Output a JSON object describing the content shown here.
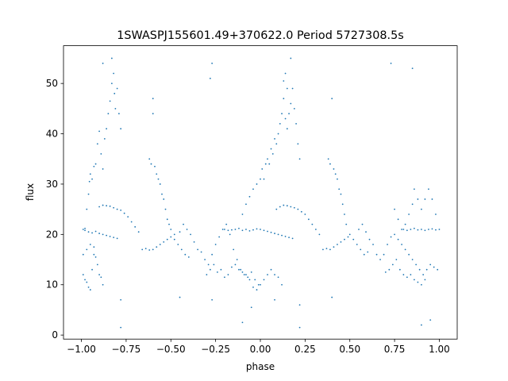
{
  "chart_data": {
    "type": "scatter",
    "title": "1SWASPJ155601.49+370622.0 Period 5727308.5s",
    "xlabel": "phase",
    "ylabel": "flux",
    "xlim": [
      -1.1,
      1.1
    ],
    "ylim": [
      -0.8,
      57.5
    ],
    "xticks": [
      -1.0,
      -0.75,
      -0.5,
      -0.25,
      0.0,
      0.25,
      0.5,
      0.75,
      1.0
    ],
    "xtick_labels": [
      "−1.00",
      "−0.75",
      "−0.50",
      "−0.25",
      "0.00",
      "0.25",
      "0.50",
      "0.75",
      "1.00"
    ],
    "yticks": [
      0,
      10,
      20,
      30,
      40,
      50
    ],
    "ytick_labels": [
      "0",
      "10",
      "20",
      "30",
      "40",
      "50"
    ],
    "grid": false,
    "marker_color": "#1f77b4",
    "series": [
      {
        "values_description_only": "",
        "points": [
          [
            -0.99,
            21.0
          ],
          [
            -0.98,
            20.8
          ],
          [
            -0.97,
            25.0
          ],
          [
            -0.96,
            28.0
          ],
          [
            -0.955,
            30.5
          ],
          [
            -0.95,
            32.0
          ],
          [
            -0.94,
            31.0
          ],
          [
            -0.93,
            33.5
          ],
          [
            -0.92,
            34.0
          ],
          [
            -0.91,
            38.0
          ],
          [
            -0.9,
            40.5
          ],
          [
            -0.89,
            36.0
          ],
          [
            -0.88,
            33.0
          ],
          [
            -0.87,
            39.0
          ],
          [
            -0.86,
            41.0
          ],
          [
            -0.85,
            44.0
          ],
          [
            -0.84,
            46.5
          ],
          [
            -0.83,
            50.0
          ],
          [
            -0.82,
            52.0
          ],
          [
            -0.815,
            48.0
          ],
          [
            -0.81,
            45.0
          ],
          [
            -0.8,
            49.0
          ],
          [
            -0.79,
            44.0
          ],
          [
            -0.78,
            41.0
          ],
          [
            -0.99,
            12.0
          ],
          [
            -0.98,
            11.0
          ],
          [
            -0.97,
            10.5
          ],
          [
            -0.96,
            9.5
          ],
          [
            -0.95,
            9.0
          ],
          [
            -0.94,
            13.0
          ],
          [
            -0.93,
            16.0
          ],
          [
            -0.92,
            15.5
          ],
          [
            -0.91,
            14.0
          ],
          [
            -0.9,
            12.0
          ],
          [
            -0.89,
            11.5
          ],
          [
            -0.88,
            10.0
          ],
          [
            -0.99,
            16.0
          ],
          [
            -0.97,
            17.0
          ],
          [
            -0.95,
            18.0
          ],
          [
            -0.93,
            17.5
          ],
          [
            -0.98,
            21.2
          ],
          [
            -0.96,
            20.5
          ],
          [
            -0.94,
            20.3
          ],
          [
            -0.92,
            20.6
          ],
          [
            -0.9,
            20.2
          ],
          [
            -0.88,
            20.0
          ],
          [
            -0.86,
            19.8
          ],
          [
            -0.84,
            19.6
          ],
          [
            -0.82,
            19.4
          ],
          [
            -0.8,
            19.2
          ],
          [
            -0.9,
            25.5
          ],
          [
            -0.88,
            25.8
          ],
          [
            -0.86,
            25.7
          ],
          [
            -0.84,
            25.6
          ],
          [
            -0.82,
            25.3
          ],
          [
            -0.8,
            25.0
          ],
          [
            -0.78,
            24.8
          ],
          [
            -0.76,
            24.2
          ],
          [
            -0.74,
            23.5
          ],
          [
            -0.72,
            22.5
          ],
          [
            -0.7,
            21.5
          ],
          [
            -0.68,
            20.5
          ],
          [
            -0.66,
            17.0
          ],
          [
            -0.64,
            17.2
          ],
          [
            -0.62,
            16.9
          ],
          [
            -0.6,
            17.0
          ],
          [
            -0.58,
            17.5
          ],
          [
            -0.56,
            18.0
          ],
          [
            -0.54,
            18.5
          ],
          [
            -0.52,
            19.0
          ],
          [
            -0.5,
            19.5
          ],
          [
            -0.48,
            20.0
          ],
          [
            -0.62,
            35.0
          ],
          [
            -0.61,
            34.0
          ],
          [
            -0.6,
            47.0
          ],
          [
            -0.59,
            33.5
          ],
          [
            -0.58,
            32.0
          ],
          [
            -0.57,
            31.0
          ],
          [
            -0.56,
            30.0
          ],
          [
            -0.55,
            28.0
          ],
          [
            -0.54,
            27.0
          ],
          [
            -0.53,
            25.0
          ],
          [
            -0.52,
            23.0
          ],
          [
            -0.51,
            22.0
          ],
          [
            -0.5,
            21.0
          ],
          [
            -0.48,
            19.0
          ],
          [
            -0.46,
            18.0
          ],
          [
            -0.44,
            17.0
          ],
          [
            -0.42,
            16.0
          ],
          [
            -0.4,
            15.5
          ],
          [
            -0.45,
            20.5
          ],
          [
            -0.43,
            22.0
          ],
          [
            -0.41,
            21.0
          ],
          [
            -0.39,
            20.0
          ],
          [
            -0.37,
            18.5
          ],
          [
            -0.35,
            17.0
          ],
          [
            -0.33,
            16.5
          ],
          [
            -0.31,
            15.0
          ],
          [
            -0.29,
            14.0
          ],
          [
            -0.27,
            16.0
          ],
          [
            -0.25,
            18.0
          ],
          [
            -0.23,
            19.5
          ],
          [
            -0.21,
            21.0
          ],
          [
            -0.19,
            22.0
          ],
          [
            -0.17,
            20.0
          ],
          [
            -0.15,
            17.0
          ],
          [
            -0.13,
            15.0
          ],
          [
            -0.11,
            13.0
          ],
          [
            -0.09,
            12.0
          ],
          [
            -0.07,
            11.5
          ],
          [
            -0.05,
            12.5
          ],
          [
            -0.03,
            11.0
          ],
          [
            -0.01,
            10.0
          ],
          [
            -0.3,
            12.0
          ],
          [
            -0.28,
            13.0
          ],
          [
            -0.26,
            14.0
          ],
          [
            -0.24,
            12.5
          ],
          [
            -0.22,
            13.0
          ],
          [
            -0.2,
            11.5
          ],
          [
            -0.18,
            12.0
          ],
          [
            -0.16,
            13.5
          ],
          [
            -0.14,
            14.0
          ],
          [
            -0.12,
            13.0
          ],
          [
            -0.1,
            12.5
          ],
          [
            -0.08,
            12.0
          ],
          [
            -0.06,
            11.0
          ],
          [
            -0.04,
            9.5
          ],
          [
            -0.02,
            9.0
          ],
          [
            0.0,
            10.0
          ],
          [
            0.02,
            11.0
          ],
          [
            0.04,
            12.0
          ],
          [
            0.06,
            13.0
          ],
          [
            0.08,
            12.0
          ],
          [
            0.1,
            11.5
          ],
          [
            0.12,
            10.0
          ],
          [
            -0.2,
            21.0
          ],
          [
            -0.18,
            20.8
          ],
          [
            -0.16,
            20.9
          ],
          [
            -0.14,
            21.0
          ],
          [
            -0.12,
            21.2
          ],
          [
            -0.1,
            20.8
          ],
          [
            -0.08,
            21.0
          ],
          [
            -0.06,
            20.7
          ],
          [
            -0.04,
            20.9
          ],
          [
            -0.02,
            21.1
          ],
          [
            0.0,
            21.0
          ],
          [
            0.02,
            20.8
          ],
          [
            0.04,
            20.6
          ],
          [
            0.06,
            20.4
          ],
          [
            0.08,
            20.2
          ],
          [
            0.1,
            20.0
          ],
          [
            0.12,
            19.8
          ],
          [
            0.14,
            19.6
          ],
          [
            0.16,
            19.4
          ],
          [
            0.18,
            19.2
          ],
          [
            -0.1,
            24.0
          ],
          [
            -0.08,
            26.0
          ],
          [
            -0.06,
            27.5
          ],
          [
            -0.04,
            29.0
          ],
          [
            -0.02,
            30.0
          ],
          [
            0.0,
            31.0
          ],
          [
            0.01,
            33.0
          ],
          [
            0.02,
            31.0
          ],
          [
            0.03,
            34.0
          ],
          [
            0.04,
            35.0
          ],
          [
            0.05,
            34.0
          ],
          [
            0.06,
            37.0
          ],
          [
            0.07,
            36.0
          ],
          [
            0.08,
            39.0
          ],
          [
            0.09,
            38.0
          ],
          [
            0.1,
            40.0
          ],
          [
            0.11,
            42.0
          ],
          [
            0.12,
            44.0
          ],
          [
            0.13,
            47.0
          ],
          [
            0.14,
            43.0
          ],
          [
            0.15,
            41.0
          ],
          [
            0.16,
            44.0
          ],
          [
            0.17,
            46.0
          ],
          [
            0.18,
            49.0
          ],
          [
            0.19,
            45.0
          ],
          [
            0.2,
            42.0
          ],
          [
            0.21,
            38.0
          ],
          [
            0.22,
            35.0
          ],
          [
            0.13,
            50.5
          ],
          [
            0.14,
            52.0
          ],
          [
            0.15,
            49.0
          ],
          [
            0.09,
            25.0
          ],
          [
            0.11,
            25.5
          ],
          [
            0.13,
            25.8
          ],
          [
            0.15,
            25.7
          ],
          [
            0.17,
            25.5
          ],
          [
            0.19,
            25.3
          ],
          [
            0.21,
            25.0
          ],
          [
            0.23,
            24.5
          ],
          [
            0.25,
            24.0
          ],
          [
            0.27,
            23.0
          ],
          [
            0.29,
            22.0
          ],
          [
            0.31,
            21.0
          ],
          [
            0.33,
            20.0
          ],
          [
            0.35,
            17.0
          ],
          [
            0.37,
            17.2
          ],
          [
            0.39,
            17.0
          ],
          [
            0.41,
            17.5
          ],
          [
            0.43,
            18.0
          ],
          [
            0.45,
            18.5
          ],
          [
            0.47,
            19.0
          ],
          [
            0.49,
            19.5
          ],
          [
            0.38,
            35.0
          ],
          [
            0.39,
            34.0
          ],
          [
            0.4,
            47.0
          ],
          [
            0.41,
            33.0
          ],
          [
            0.42,
            32.0
          ],
          [
            0.43,
            31.0
          ],
          [
            0.44,
            29.0
          ],
          [
            0.45,
            28.0
          ],
          [
            0.46,
            26.0
          ],
          [
            0.47,
            24.0
          ],
          [
            0.48,
            22.0
          ],
          [
            0.5,
            20.0
          ],
          [
            0.52,
            19.0
          ],
          [
            0.54,
            18.0
          ],
          [
            0.56,
            17.0
          ],
          [
            0.58,
            16.0
          ],
          [
            0.6,
            16.5
          ],
          [
            0.55,
            21.0
          ],
          [
            0.57,
            22.0
          ],
          [
            0.59,
            20.5
          ],
          [
            0.61,
            19.0
          ],
          [
            0.63,
            18.0
          ],
          [
            0.65,
            16.0
          ],
          [
            0.67,
            15.0
          ],
          [
            0.69,
            16.0
          ],
          [
            0.71,
            18.0
          ],
          [
            0.73,
            19.5
          ],
          [
            0.75,
            20.0
          ],
          [
            0.77,
            19.0
          ],
          [
            0.79,
            18.0
          ],
          [
            0.81,
            17.0
          ],
          [
            0.83,
            16.0
          ],
          [
            0.85,
            15.0
          ],
          [
            0.87,
            14.0
          ],
          [
            0.89,
            13.0
          ],
          [
            0.91,
            12.0
          ],
          [
            0.93,
            13.0
          ],
          [
            0.95,
            14.0
          ],
          [
            0.97,
            13.5
          ],
          [
            0.99,
            13.0
          ],
          [
            0.7,
            12.5
          ],
          [
            0.72,
            13.0
          ],
          [
            0.74,
            14.0
          ],
          [
            0.76,
            15.0
          ],
          [
            0.78,
            13.0
          ],
          [
            0.8,
            12.0
          ],
          [
            0.82,
            11.5
          ],
          [
            0.84,
            12.0
          ],
          [
            0.86,
            11.0
          ],
          [
            0.88,
            10.5
          ],
          [
            0.9,
            10.0
          ],
          [
            0.92,
            11.0
          ],
          [
            0.75,
            25.0
          ],
          [
            0.77,
            23.0
          ],
          [
            0.79,
            21.0
          ],
          [
            0.81,
            22.0
          ],
          [
            0.83,
            24.0
          ],
          [
            0.85,
            26.0
          ],
          [
            0.86,
            29.0
          ],
          [
            0.88,
            27.0
          ],
          [
            0.9,
            25.0
          ],
          [
            0.92,
            27.0
          ],
          [
            0.94,
            29.0
          ],
          [
            0.96,
            27.0
          ],
          [
            0.98,
            24.0
          ],
          [
            0.8,
            21.0
          ],
          [
            0.82,
            20.8
          ],
          [
            0.84,
            21.0
          ],
          [
            0.86,
            21.2
          ],
          [
            0.88,
            20.9
          ],
          [
            0.9,
            21.0
          ],
          [
            0.92,
            20.8
          ],
          [
            0.94,
            21.0
          ],
          [
            0.96,
            21.1
          ],
          [
            0.98,
            20.9
          ],
          [
            1.0,
            21.0
          ],
          [
            -0.83,
            55.0
          ],
          [
            -0.88,
            54.0
          ],
          [
            -0.27,
            54.0
          ],
          [
            0.17,
            55.0
          ],
          [
            0.73,
            54.0
          ],
          [
            -0.6,
            44.0
          ],
          [
            0.85,
            53.0
          ],
          [
            -0.28,
            51.0
          ],
          [
            -0.78,
            7.0
          ],
          [
            -0.78,
            1.5
          ],
          [
            0.22,
            6.0
          ],
          [
            0.22,
            1.5
          ],
          [
            -0.45,
            7.5
          ],
          [
            -0.27,
            7.0
          ],
          [
            0.08,
            7.0
          ],
          [
            0.9,
            2.0
          ],
          [
            0.95,
            3.0
          ],
          [
            -0.05,
            5.5
          ],
          [
            0.4,
            7.5
          ],
          [
            -0.1,
            2.5
          ]
        ]
      }
    ]
  }
}
